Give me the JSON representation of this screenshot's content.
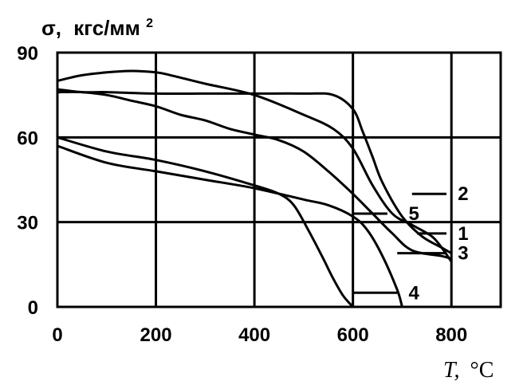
{
  "chart_data": {
    "type": "line",
    "title": "",
    "ylabel_sigma": "σ,",
    "ylabel_unit": "кгс/мм",
    "ylabel_sup": "2",
    "xlabel_var": "T,",
    "xlabel_unit": "°C",
    "xlim": [
      0,
      900
    ],
    "ylim": [
      0,
      90
    ],
    "x_ticks": [
      0,
      200,
      400,
      600,
      800
    ],
    "y_ticks": [
      0,
      30,
      60,
      90
    ],
    "x_grid": [
      0,
      200,
      400,
      600,
      800,
      900
    ],
    "y_grid": [
      0,
      30,
      60,
      90
    ],
    "grid": true,
    "series": [
      {
        "name": "1",
        "x": [
          0,
          50,
          100,
          200,
          300,
          400,
          500,
          560,
          600,
          620,
          640,
          660,
          700,
          740,
          780,
          800
        ],
        "y": [
          77,
          76,
          76,
          75.5,
          75.5,
          75.5,
          75.5,
          75,
          70,
          62,
          53,
          44,
          32,
          25,
          21,
          19
        ],
        "label_at": [
          800,
          26
        ]
      },
      {
        "name": "2",
        "x": [
          0,
          50,
          100,
          150,
          200,
          230,
          300,
          400,
          500,
          560,
          600,
          640,
          680,
          720,
          760,
          780,
          800
        ],
        "y": [
          80,
          82,
          83,
          83.5,
          83,
          82,
          79,
          75,
          68,
          63,
          56,
          43,
          33,
          29,
          25,
          21,
          16
        ],
        "label_at": [
          800,
          40
        ]
      },
      {
        "name": "3",
        "x": [
          0,
          50,
          100,
          150,
          200,
          250,
          300,
          350,
          400,
          450,
          500,
          550,
          600,
          640,
          680,
          720,
          780,
          800
        ],
        "y": [
          76,
          76,
          75,
          73,
          71,
          68,
          66,
          63,
          61,
          59,
          55,
          48,
          40,
          33,
          26,
          20,
          18,
          17
        ],
        "label_at": [
          800,
          19
        ]
      },
      {
        "name": "4",
        "x": [
          0,
          100,
          200,
          300,
          400,
          450,
          480,
          510,
          540,
          560,
          580,
          600
        ],
        "y": [
          60,
          55,
          52,
          48,
          43,
          40,
          36,
          27,
          17,
          10,
          4,
          0
        ],
        "label_at": [
          700,
          5
        ]
      },
      {
        "name": "5",
        "x": [
          0,
          100,
          200,
          300,
          400,
          500,
          550,
          600,
          630,
          660,
          690,
          700
        ],
        "y": [
          57,
          51,
          48,
          45,
          42,
          38,
          36,
          32,
          27,
          18,
          6,
          0
        ],
        "label_at": [
          700,
          33
        ]
      }
    ],
    "leaders": [
      {
        "label": "1",
        "from": [
          730,
          26
        ],
        "to": [
          790,
          26
        ]
      },
      {
        "label": "2",
        "from": [
          720,
          40
        ],
        "to": [
          790,
          40
        ]
      },
      {
        "label": "3",
        "from": [
          690,
          19
        ],
        "to": [
          790,
          19
        ]
      },
      {
        "label": "4",
        "from": [
          600,
          5
        ],
        "to": [
          690,
          5
        ]
      },
      {
        "label": "5",
        "from": [
          600,
          33
        ],
        "to": [
          670,
          33
        ]
      }
    ]
  }
}
